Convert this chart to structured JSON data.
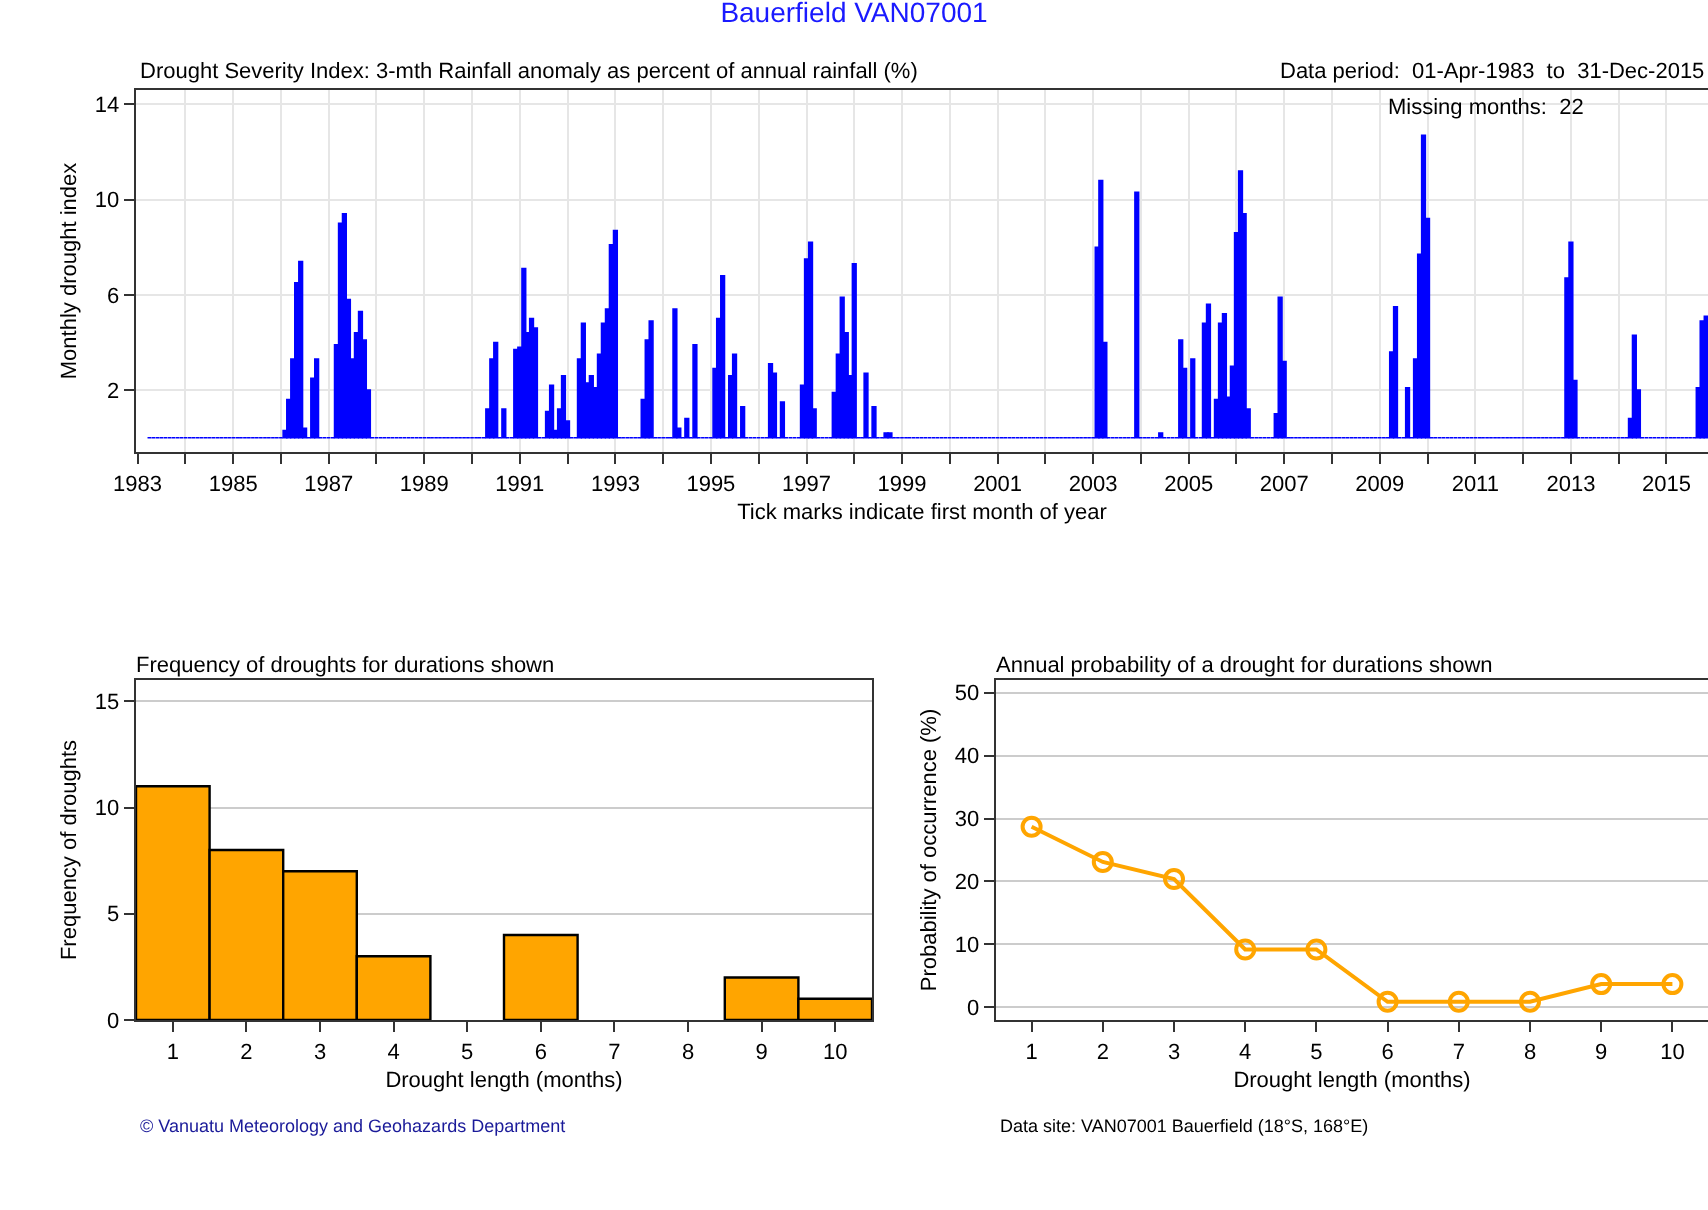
{
  "chart_data": [
    {
      "type": "bar",
      "title": "Bauerfield VAN07001",
      "subtitle": "Drought Severity Index: 3-mth Rainfall anomaly as percent of annual rainfall (%)",
      "xlabel": "Tick marks indicate first month of year",
      "ylabel": "Monthly drought index",
      "annotations": [
        "Data period:  01-Apr-1983  to  31-Dec-2015",
        "Missing months:  22"
      ],
      "x": [
        "1983-04",
        "1983-05",
        "1983-06",
        "1983-07",
        "1983-08",
        "1983-09",
        "1983-10",
        "1983-11",
        "1983-12",
        "1984-01",
        "1984-02",
        "1984-03",
        "1984-04",
        "1984-05",
        "1984-06",
        "1984-07",
        "1984-08",
        "1984-09",
        "1984-10",
        "1984-11",
        "1984-12",
        "1985-01",
        "1985-02",
        "1985-03",
        "1985-04",
        "1985-05",
        "1985-06",
        "1985-07",
        "1985-08",
        "1985-09",
        "1985-10",
        "1985-11",
        "1985-12",
        "1986-01",
        "1986-02",
        "1986-03",
        "1986-04",
        "1986-05",
        "1986-06",
        "1986-07",
        "1986-08",
        "1986-09",
        "1986-10",
        "1986-11",
        "1986-12",
        "1987-01",
        "1987-02",
        "1987-03",
        "1987-04",
        "1987-05",
        "1987-06",
        "1987-07",
        "1987-08",
        "1987-09",
        "1987-10",
        "1987-11",
        "1987-12",
        "1988-01",
        "1988-02",
        "1988-03",
        "1988-04",
        "1988-05",
        "1988-06",
        "1988-07",
        "1988-08",
        "1988-09",
        "1988-10",
        "1988-11",
        "1988-12",
        "1989-01",
        "1989-02",
        "1989-03",
        "1989-04",
        "1989-05",
        "1989-06",
        "1989-07",
        "1989-08",
        "1989-09",
        "1989-10",
        "1989-11",
        "1989-12",
        "1990-01",
        "1990-02",
        "1990-03",
        "1990-04",
        "1990-05",
        "1990-06",
        "1990-07",
        "1990-08",
        "1990-09",
        "1990-10",
        "1990-11",
        "1990-12",
        "1991-01",
        "1991-02",
        "1991-03",
        "1991-04",
        "1991-05",
        "1991-06",
        "1991-07",
        "1991-08",
        "1991-09",
        "1991-10",
        "1991-11",
        "1991-12",
        "1992-01",
        "1992-02",
        "1992-03",
        "1992-04",
        "1992-05",
        "1992-06",
        "1992-07",
        "1992-08",
        "1992-09",
        "1992-10",
        "1992-11",
        "1992-12",
        "1993-01",
        "1993-02",
        "1993-03",
        "1993-04",
        "1993-05",
        "1993-06",
        "1993-07",
        "1993-08",
        "1993-09",
        "1993-10",
        "1993-11",
        "1993-12",
        "1994-01",
        "1994-02",
        "1994-03",
        "1994-04",
        "1994-05",
        "1994-06",
        "1994-07",
        "1994-08",
        "1994-09",
        "1994-10",
        "1994-11",
        "1994-12",
        "1995-01",
        "1995-02",
        "1995-03",
        "1995-04",
        "1995-05",
        "1995-06",
        "1995-07",
        "1995-08",
        "1995-09",
        "1995-10",
        "1995-11",
        "1995-12",
        "1996-01",
        "1996-02",
        "1996-03",
        "1996-04",
        "1996-05",
        "1996-06",
        "1996-07",
        "1996-08",
        "1996-09",
        "1996-10",
        "1996-11",
        "1996-12",
        "1997-01",
        "1997-02",
        "1997-03",
        "1997-04",
        "1997-05",
        "1997-06",
        "1997-07",
        "1997-08",
        "1997-09",
        "1997-10",
        "1997-11",
        "1997-12",
        "1998-01",
        "1998-02",
        "1998-03",
        "1998-04",
        "1998-05",
        "1998-06",
        "1998-07",
        "1998-08",
        "1998-09",
        "1998-10",
        "1998-11",
        "1998-12",
        "1999-01",
        "1999-02",
        "1999-03",
        "1999-04",
        "1999-05",
        "1999-06",
        "1999-07",
        "1999-08",
        "1999-09",
        "1999-10",
        "1999-11",
        "1999-12",
        "2000-01",
        "2000-02",
        "2000-03",
        "2000-04",
        "2000-05",
        "2000-06",
        "2000-07",
        "2000-08",
        "2000-09",
        "2000-10",
        "2000-11",
        "2000-12",
        "2001-01",
        "2001-02",
        "2001-03",
        "2001-04",
        "2001-05",
        "2001-06",
        "2001-07",
        "2001-08",
        "2001-09",
        "2001-10",
        "2001-11",
        "2001-12",
        "2002-01",
        "2002-02",
        "2002-03",
        "2002-04",
        "2002-05",
        "2002-06",
        "2002-07",
        "2002-08",
        "2002-09",
        "2002-10",
        "2002-11",
        "2002-12",
        "2003-01",
        "2003-02",
        "2003-03",
        "2003-04",
        "2003-05",
        "2003-06",
        "2003-07",
        "2003-08",
        "2003-09",
        "2003-10",
        "2003-11",
        "2003-12",
        "2004-01",
        "2004-02",
        "2004-03",
        "2004-04",
        "2004-05",
        "2004-06",
        "2004-07",
        "2004-08",
        "2004-09",
        "2004-10",
        "2004-11",
        "2004-12",
        "2005-01",
        "2005-02",
        "2005-03",
        "2005-04",
        "2005-05",
        "2005-06",
        "2005-07",
        "2005-08",
        "2005-09",
        "2005-10",
        "2005-11",
        "2005-12",
        "2006-01",
        "2006-02",
        "2006-03",
        "2006-04",
        "2006-05",
        "2006-06",
        "2006-07",
        "2006-08",
        "2006-09",
        "2006-10",
        "2006-11",
        "2006-12",
        "2007-01",
        "2007-02",
        "2007-03",
        "2007-04",
        "2007-05",
        "2007-06",
        "2007-07",
        "2007-08",
        "2007-09",
        "2007-10",
        "2007-11",
        "2007-12",
        "2008-01",
        "2008-02",
        "2008-03",
        "2008-04",
        "2008-05",
        "2008-06",
        "2008-07",
        "2008-08",
        "2008-09",
        "2008-10",
        "2008-11",
        "2008-12",
        "2009-01",
        "2009-02",
        "2009-03",
        "2009-04",
        "2009-05",
        "2009-06",
        "2009-07",
        "2009-08",
        "2009-09",
        "2009-10",
        "2009-11",
        "2009-12",
        "2010-01",
        "2010-02",
        "2010-03",
        "2010-04",
        "2010-05",
        "2010-06",
        "2010-07",
        "2010-08",
        "2010-09",
        "2010-10",
        "2010-11",
        "2010-12",
        "2011-01",
        "2011-02",
        "2011-03",
        "2011-04",
        "2011-05",
        "2011-06",
        "2011-07",
        "2011-08",
        "2011-09",
        "2011-10",
        "2011-11",
        "2011-12",
        "2012-01",
        "2012-02",
        "2012-03",
        "2012-04",
        "2012-05",
        "2012-06",
        "2012-07",
        "2012-08",
        "2012-09",
        "2012-10",
        "2012-11",
        "2012-12",
        "2013-01",
        "2013-02",
        "2013-03",
        "2013-04",
        "2013-05",
        "2013-06",
        "2013-07",
        "2013-08",
        "2013-09",
        "2013-10",
        "2013-11",
        "2013-12",
        "2014-01",
        "2014-02",
        "2014-03",
        "2014-04",
        "2014-05",
        "2014-06",
        "2014-07",
        "2014-08",
        "2014-09",
        "2014-10",
        "2014-11",
        "2014-12",
        "2015-01",
        "2015-02",
        "2015-03",
        "2015-04",
        "2015-05",
        "2015-06",
        "2015-07",
        "2015-08",
        "2015-09",
        "2015-10",
        "2015-11"
      ],
      "series": [
        {
          "color": "#0000ff",
          "values": [
            0,
            0,
            0,
            0,
            0,
            0,
            0,
            0,
            0,
            0,
            0,
            0,
            0,
            0,
            0,
            0,
            0,
            0,
            0,
            0,
            0,
            0,
            0,
            0,
            0,
            0,
            0,
            0,
            0,
            0,
            0,
            0,
            0,
            0,
            0.3,
            1.6,
            3.3,
            6.5,
            7.4,
            0.4,
            0,
            2.5,
            3.3,
            0,
            0,
            0,
            0,
            3.9,
            9.0,
            9.4,
            5.8,
            3.3,
            4.4,
            5.3,
            4.1,
            2.0,
            0,
            0,
            0,
            0,
            0,
            0,
            0,
            0,
            0,
            0,
            0,
            0,
            0,
            0,
            0,
            0,
            0,
            0,
            0,
            0,
            0,
            0,
            0,
            0,
            0,
            0,
            0,
            0,
            0,
            1.2,
            3.3,
            4.0,
            0,
            1.2,
            0,
            0,
            3.7,
            3.8,
            7.1,
            4.4,
            5.0,
            4.6,
            0,
            0,
            1.1,
            2.2,
            0.3,
            1.2,
            2.6,
            0.7,
            0,
            0,
            3.3,
            4.8,
            2.3,
            2.6,
            2.1,
            3.5,
            4.8,
            5.4,
            8.1,
            8.7,
            0,
            0,
            0,
            0,
            0,
            0,
            1.6,
            4.1,
            4.9,
            0,
            0,
            0,
            0,
            0,
            5.4,
            0.4,
            0,
            0.8,
            0,
            3.9,
            0,
            0,
            0,
            0,
            2.9,
            5.0,
            6.8,
            0,
            2.6,
            3.5,
            0,
            1.3,
            0,
            0,
            0,
            0,
            0,
            0,
            3.1,
            2.7,
            0,
            1.5,
            0,
            0,
            0,
            0,
            2.2,
            7.5,
            8.2,
            1.2,
            0,
            0,
            0,
            0,
            1.9,
            3.5,
            5.9,
            4.4,
            2.6,
            7.3,
            0,
            0,
            2.7,
            0,
            1.3,
            0,
            0,
            0.2,
            0.2,
            0,
            0,
            0,
            0,
            0,
            0,
            0,
            0,
            0,
            0,
            0,
            0,
            0,
            0,
            0,
            0,
            0,
            0,
            0,
            0,
            0,
            0,
            0,
            0,
            0,
            0,
            0,
            0,
            0,
            0,
            0,
            0,
            0,
            0,
            0,
            0,
            0,
            0,
            0,
            0,
            0,
            0,
            0,
            0,
            0,
            0,
            0,
            0,
            0,
            0,
            0,
            8.0,
            10.8,
            4.0,
            0,
            0,
            0,
            0,
            0,
            0,
            0,
            10.3,
            0,
            0,
            0,
            0,
            0,
            0.2,
            0,
            0,
            0,
            0,
            4.1,
            2.9,
            0,
            3.3,
            0,
            0,
            4.8,
            5.6,
            0,
            1.6,
            4.8,
            5.2,
            1.7,
            3.0,
            8.6,
            11.2,
            9.4,
            1.2,
            0,
            0,
            0,
            0,
            0,
            0,
            1.0,
            5.9,
            3.2,
            0,
            0,
            0,
            0,
            0,
            0,
            0,
            0,
            0,
            0,
            0,
            0,
            0,
            0,
            0,
            0,
            0,
            0,
            0,
            0,
            0,
            0,
            0,
            0,
            0,
            0,
            3.6,
            5.5,
            0,
            0,
            2.1,
            0,
            3.3,
            7.7,
            12.7,
            9.2,
            0,
            0,
            0,
            0,
            0,
            0,
            0,
            0,
            0,
            0,
            0,
            0,
            0,
            0,
            0,
            0,
            0,
            0,
            0,
            0,
            0,
            0,
            0,
            0,
            0,
            0,
            0,
            0,
            0,
            0,
            0,
            0,
            0,
            0,
            6.7,
            8.2,
            2.4,
            0,
            0,
            0,
            0,
            0,
            0,
            0,
            0,
            0,
            0,
            0,
            0,
            0,
            0.8,
            4.3,
            2.0,
            0,
            0,
            0,
            0,
            0,
            0,
            0,
            0,
            0,
            0,
            0,
            0,
            0,
            0,
            2.1,
            4.9,
            5.1
          ]
        }
      ],
      "xlim": [
        "1982-12-20",
        "2015-11-15"
      ],
      "xticks": [
        {
          "value": "1983-01-01",
          "label": "1983"
        },
        {
          "value": "1984-01-01",
          "label": null
        },
        {
          "value": "1985-01-01",
          "label": "1985"
        },
        {
          "value": "1986-01-01",
          "label": null
        },
        {
          "value": "1987-01-01",
          "label": "1987"
        },
        {
          "value": "1988-01-01",
          "label": null
        },
        {
          "value": "1989-01-01",
          "label": "1989"
        },
        {
          "value": "1990-01-01",
          "label": null
        },
        {
          "value": "1991-01-01",
          "label": "1991"
        },
        {
          "value": "1992-01-01",
          "label": null
        },
        {
          "value": "1993-01-01",
          "label": "1993"
        },
        {
          "value": "1994-01-01",
          "label": null
        },
        {
          "value": "1995-01-01",
          "label": "1995"
        },
        {
          "value": "1996-01-01",
          "label": null
        },
        {
          "value": "1997-01-01",
          "label": "1997"
        },
        {
          "value": "1998-01-01",
          "label": null
        },
        {
          "value": "1999-01-01",
          "label": "1999"
        },
        {
          "value": "2000-01-01",
          "label": null
        },
        {
          "value": "2001-01-01",
          "label": "2001"
        },
        {
          "value": "2002-01-01",
          "label": null
        },
        {
          "value": "2003-01-01",
          "label": "2003"
        },
        {
          "value": "2004-01-01",
          "label": null
        },
        {
          "value": "2005-01-01",
          "label": "2005"
        },
        {
          "value": "2006-01-01",
          "label": null
        },
        {
          "value": "2007-01-01",
          "label": "2007"
        },
        {
          "value": "2008-01-01",
          "label": null
        },
        {
          "value": "2009-01-01",
          "label": "2009"
        },
        {
          "value": "2010-01-01",
          "label": null
        },
        {
          "value": "2011-01-01",
          "label": "2011"
        },
        {
          "value": "2012-01-01",
          "label": null
        },
        {
          "value": "2013-01-01",
          "label": "2013"
        },
        {
          "value": "2014-01-01",
          "label": null
        },
        {
          "value": "2015-01-01",
          "label": "2015"
        }
      ],
      "ylim": [
        -0.6,
        14.6
      ],
      "yticks": [
        2,
        6,
        10,
        14
      ],
      "grid": true
    },
    {
      "type": "bar",
      "title": "Frequency of droughts for durations shown",
      "xlabel": "Drought length (months)",
      "ylabel": "Frequency of droughts",
      "annotations": [
        "© Vanuatu Meteorology and Geohazards Department"
      ],
      "categories": [
        "1",
        "2",
        "3",
        "4",
        "5",
        "6",
        "7",
        "8",
        "9",
        "10"
      ],
      "series": [
        {
          "color": "#ffa500",
          "values": [
            11,
            8,
            7,
            3,
            0,
            4,
            0,
            0,
            2,
            1
          ]
        }
      ],
      "ylim": [
        0,
        16
      ],
      "yticks": [
        0,
        5,
        10,
        15
      ],
      "grid": "y"
    },
    {
      "type": "line",
      "title": "Annual probability of a drought for durations shown",
      "xlabel": "Drought length (months)",
      "ylabel": "Probability of occurrence (%)",
      "annotations": [
        "Data site: VAN07001 Bauerfield (18°S, 168°E)"
      ],
      "categories": [
        "1",
        "2",
        "3",
        "4",
        "5",
        "6",
        "7",
        "8",
        "9",
        "10"
      ],
      "series": [
        {
          "color": "#ffa500",
          "values": [
            28.7,
            23.1,
            20.4,
            9.2,
            9.2,
            0.9,
            0.9,
            0.9,
            3.7,
            3.7
          ]
        }
      ],
      "ylim": [
        -2,
        52
      ],
      "yticks": [
        0,
        10,
        20,
        30,
        40,
        50
      ],
      "grid": "y",
      "marker": "circle"
    }
  ]
}
